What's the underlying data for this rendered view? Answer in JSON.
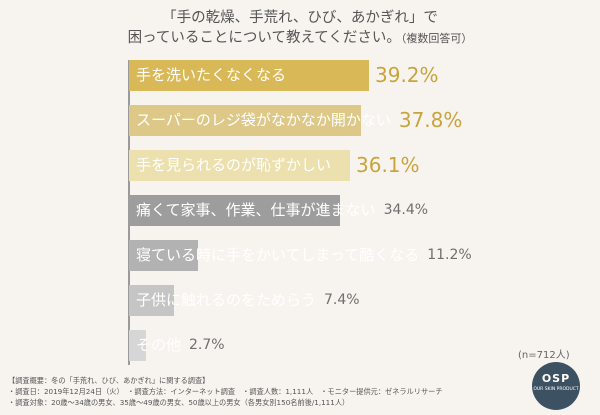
{
  "title": {
    "line1": "「手の乾燥、手荒れ、ひび、あかぎれ」で",
    "line2": "困っていることについて教えてください。",
    "line2_sub": "（複数回答可）"
  },
  "chart_data": {
    "type": "bar",
    "orientation": "horizontal",
    "unit": "%",
    "categories": [
      "手を洗いたくなくなる",
      "スーパーのレジ袋がなかなか開かない",
      "手を見られるのが恥ずかしい",
      "痛くて家事、作業、仕事が進まない",
      "寝ている時に手をかいてしまって酷くなる",
      "子供に触れるのをためらう",
      "その他"
    ],
    "values": [
      39.2,
      37.8,
      36.1,
      34.4,
      11.2,
      7.4,
      2.7
    ],
    "value_labels": [
      "39.2%",
      "37.8%",
      "36.1%",
      "34.4%",
      "11.2%",
      "7.4%",
      "2.7%"
    ],
    "bar_colors": [
      "#d9b957",
      "#ddc888",
      "#ece0ae",
      "#9d9d9d",
      "#b2b2b2",
      "#c5c5c5",
      "#d6d6d6"
    ],
    "value_colors": [
      "#c9a43d",
      "#c9a43d",
      "#c9a43d",
      "#6f6f6f",
      "#6f6f6f",
      "#6f6f6f",
      "#6f6f6f"
    ],
    "xlim": [
      0,
      40
    ],
    "grid": false,
    "legend": "none"
  },
  "sample_note": "(n=712人)",
  "notes": [
    "【調査概要：冬の「手荒れ、ひび、あかぎれ」に関する調査】",
    "・調査日：2019年12月24日（火）　・調査方法：インターネット調査　・調査人数：1,111人　・モニター提供元：ゼネラルリサーチ",
    "・調査対象：20歳～34歳の男女、35歳～49歳の男女、50歳以上の男女（各男女別150名前後/1,111人）"
  ],
  "logo": {
    "text": "OSP",
    "tagline": "OUR SKIN PRODUCT"
  }
}
